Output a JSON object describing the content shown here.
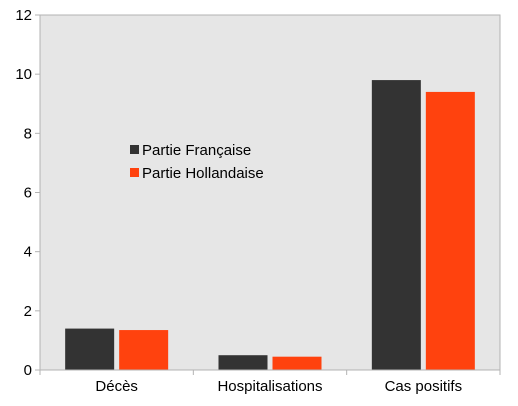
{
  "chart_data": {
    "type": "bar",
    "title": "",
    "xlabel": "",
    "ylabel": "",
    "categories": [
      "Décès",
      "Hospitalisations",
      "Cas positifs"
    ],
    "series": [
      {
        "name": "Partie Française",
        "values": [
          1.4,
          0.5,
          9.8
        ],
        "color": "#333333"
      },
      {
        "name": "Partie Hollandaise",
        "values": [
          1.35,
          0.45,
          9.4
        ],
        "color": "#ff420e"
      }
    ],
    "ylim": [
      0,
      12
    ],
    "yticks": [
      "0",
      "2",
      "4",
      "6",
      "8",
      "10",
      "12"
    ],
    "grid": false,
    "legend_position": "inside-upper-left",
    "plot_background": "#e6e6e6"
  }
}
